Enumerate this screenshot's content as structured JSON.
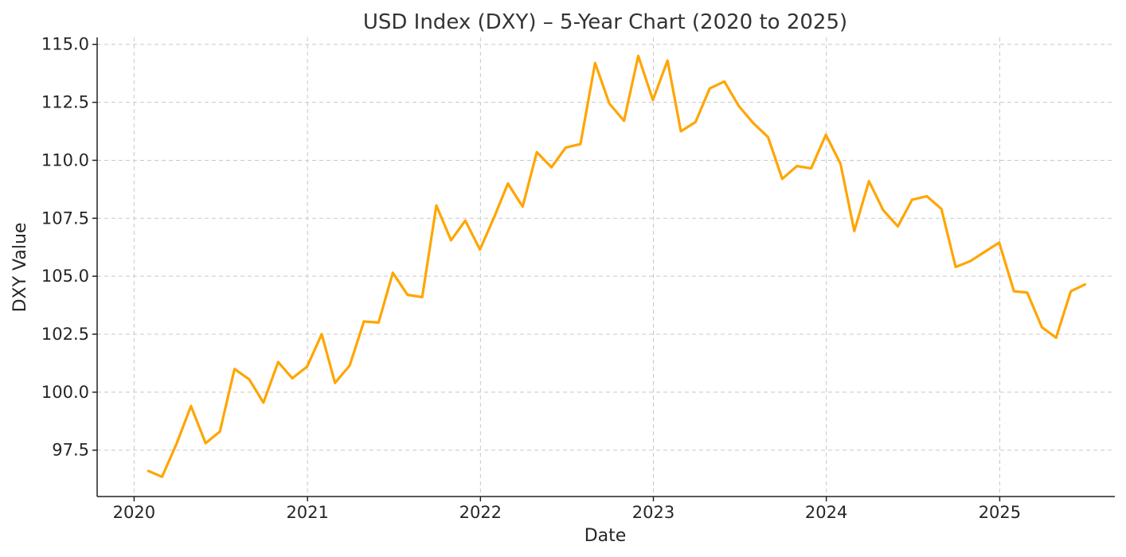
{
  "chart_data": {
    "type": "line",
    "title": "USD Index (DXY) – 5-Year Chart (2020 to 2025)",
    "xlabel": "Date",
    "ylabel": "DXY Value",
    "xlim": [
      "2019-10-15",
      "2025-09-01"
    ],
    "ylim": [
      95.5,
      115.3
    ],
    "x_ticks": [
      "2020",
      "2021",
      "2022",
      "2023",
      "2024",
      "2025"
    ],
    "y_ticks": [
      "97.5",
      "100.0",
      "102.5",
      "105.0",
      "107.5",
      "110.0",
      "112.5",
      "115.0"
    ],
    "grid": true,
    "color": "#FFA500",
    "series": [
      {
        "name": "",
        "x": [
          "2020-01-31",
          "2020-02-29",
          "2020-03-31",
          "2020-04-30",
          "2020-05-31",
          "2020-06-30",
          "2020-07-31",
          "2020-08-31",
          "2020-09-30",
          "2020-10-31",
          "2020-11-30",
          "2020-12-31",
          "2021-01-31",
          "2021-02-28",
          "2021-03-31",
          "2021-04-30",
          "2021-05-31",
          "2021-06-30",
          "2021-07-31",
          "2021-08-31",
          "2021-09-30",
          "2021-10-31",
          "2021-11-30",
          "2021-12-31",
          "2022-01-31",
          "2022-02-28",
          "2022-03-31",
          "2022-04-30",
          "2022-05-31",
          "2022-06-30",
          "2022-07-31",
          "2022-08-31",
          "2022-09-30",
          "2022-10-31",
          "2022-11-30",
          "2022-12-31",
          "2023-01-31",
          "2023-02-28",
          "2023-03-31",
          "2023-04-30",
          "2023-05-31",
          "2023-06-30",
          "2023-07-31",
          "2023-08-31",
          "2023-09-30",
          "2023-10-31",
          "2023-11-30",
          "2023-12-31",
          "2024-01-31",
          "2024-02-29",
          "2024-03-31",
          "2024-04-30",
          "2024-05-31",
          "2024-06-30",
          "2024-07-31",
          "2024-08-31",
          "2024-09-30",
          "2024-10-31",
          "2024-11-30",
          "2024-12-31",
          "2025-01-31",
          "2025-02-28",
          "2025-03-31",
          "2025-04-30",
          "2025-05-31",
          "2025-06-30"
        ],
        "y": [
          96.6,
          96.35,
          97.8,
          99.4,
          97.8,
          98.3,
          101.0,
          100.55,
          99.55,
          101.3,
          100.6,
          101.1,
          102.5,
          100.4,
          101.15,
          103.05,
          103.0,
          105.15,
          104.2,
          104.1,
          108.05,
          106.55,
          107.4,
          106.15,
          107.6,
          109.0,
          108.0,
          110.35,
          109.7,
          110.55,
          110.7,
          114.2,
          112.45,
          111.7,
          114.5,
          112.6,
          114.3,
          111.25,
          111.65,
          113.1,
          113.4,
          112.35,
          111.6,
          111.0,
          109.2,
          109.75,
          109.65,
          111.1,
          109.85,
          106.95,
          109.1,
          107.85,
          107.15,
          108.3,
          108.45,
          107.9,
          105.4,
          105.65,
          106.05,
          106.45,
          104.35,
          104.3,
          102.8,
          102.35,
          104.35,
          104.65
        ]
      }
    ]
  }
}
